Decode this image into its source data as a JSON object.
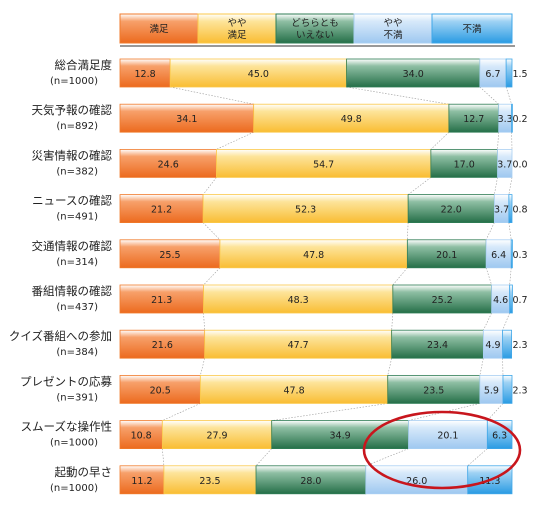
{
  "chart_data": {
    "type": "bar",
    "stacked": true,
    "orientation": "horizontal",
    "legend_position": "top",
    "series": [
      {
        "name": "満足",
        "color": "#f07b2c"
      },
      {
        "name": "やや\n満足",
        "color": "#fbc84a"
      },
      {
        "name": "どちらとも\nいえない",
        "color": "#2f7d55"
      },
      {
        "name": "やや\n不満",
        "color": "#a9cff2"
      },
      {
        "name": "不満",
        "color": "#3fa7e8"
      }
    ],
    "categories": [
      {
        "label": "総合満足度",
        "n": "(n=1000)"
      },
      {
        "label": "天気予報の確認",
        "n": "(n=892)"
      },
      {
        "label": "災害情報の確認",
        "n": "(n=382)"
      },
      {
        "label": "ニュースの確認",
        "n": "(n=491)"
      },
      {
        "label": "交通情報の確認",
        "n": "(n=314)"
      },
      {
        "label": "番組情報の確認",
        "n": "(n=437)"
      },
      {
        "label": "クイズ番組への参加",
        "n": "(n=384)"
      },
      {
        "label": "プレゼントの応募",
        "n": "(n=391)"
      },
      {
        "label": "スムーズな操作性",
        "n": "(n=1000)"
      },
      {
        "label": "起動の早さ",
        "n": "(n=1000)"
      }
    ],
    "values": [
      [
        "12.8",
        "45.0",
        "34.0",
        "6.7",
        "1.5"
      ],
      [
        "34.1",
        "49.8",
        "12.7",
        "3.3",
        "0.2"
      ],
      [
        "24.6",
        "54.7",
        "17.0",
        "3.7",
        "0.0"
      ],
      [
        "21.2",
        "52.3",
        "22.0",
        "3.7",
        "0.8"
      ],
      [
        "25.5",
        "47.8",
        "20.1",
        "6.4",
        "0.3"
      ],
      [
        "21.3",
        "48.3",
        "25.2",
        "4.6",
        "0.7"
      ],
      [
        "21.6",
        "47.7",
        "23.4",
        "4.9",
        "2.3"
      ],
      [
        "20.5",
        "47.8",
        "23.5",
        "5.9",
        "2.3"
      ],
      [
        "10.8",
        "27.9",
        "34.9",
        "20.1",
        "6.3"
      ],
      [
        "11.2",
        "23.5",
        "28.0",
        "26.0",
        "11.3"
      ]
    ],
    "xlim": [
      0,
      100
    ],
    "annotation": "red ellipse highlighting dissatisfaction segments of the last two rows"
  }
}
